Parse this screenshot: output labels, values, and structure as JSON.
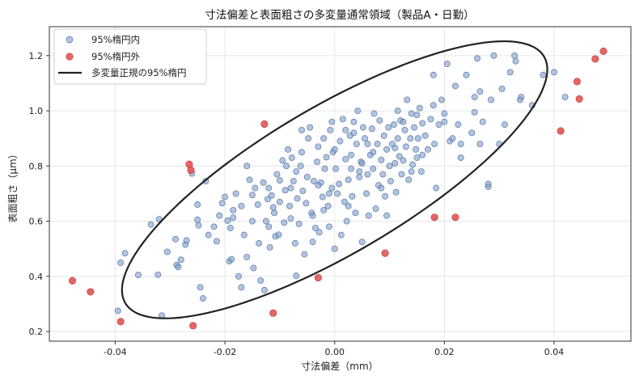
{
  "chart_data": {
    "type": "scatter",
    "title": "寸法偏差と表面粗さの多変量通常領域（製品A・日勤）",
    "xlabel": "寸法偏差（mm）",
    "ylabel": "表面粗さ（μm）",
    "xlim": [
      -0.052,
      0.054
    ],
    "ylim": [
      0.165,
      1.305
    ],
    "xticks": [
      -0.04,
      -0.02,
      0.0,
      0.02,
      0.04
    ],
    "xtick_labels": [
      "-0.04",
      "-0.02",
      "0.00",
      "0.02",
      "0.04"
    ],
    "yticks": [
      0.2,
      0.4,
      0.6,
      0.8,
      1.0,
      1.2
    ],
    "ytick_labels": [
      "0.2",
      "0.4",
      "0.6",
      "0.8",
      "1.0",
      "1.2"
    ],
    "grid": true,
    "legend_position": "top-left",
    "colors": {
      "inside": "#7f9fc9",
      "inside_edge": "#5a78a8",
      "outside": "#e05555",
      "outside_edge": "#c44040",
      "ellipse": "#222222"
    },
    "ellipse": {
      "name": "多変量正規の95%楕円",
      "center": [
        0.0,
        0.75
      ],
      "semi_major": [
        0.0375,
        0.4636
      ],
      "semi_minor": [
        -0.0098,
        0.1929
      ]
    },
    "series": [
      {
        "name": "95%楕円内",
        "points": [
          [
            -0.0395,
            0.275
          ],
          [
            -0.039,
            0.449
          ],
          [
            -0.0382,
            0.484
          ],
          [
            -0.0358,
            0.405
          ],
          [
            -0.0335,
            0.588
          ],
          [
            -0.0322,
            0.406
          ],
          [
            -0.032,
            0.607
          ],
          [
            -0.0315,
            0.258
          ],
          [
            -0.0305,
            0.489
          ],
          [
            -0.029,
            0.535
          ],
          [
            -0.0288,
            0.441
          ],
          [
            -0.0285,
            0.434
          ],
          [
            -0.028,
            0.46
          ],
          [
            -0.0272,
            0.515
          ],
          [
            -0.027,
            0.53
          ],
          [
            -0.026,
            0.773
          ],
          [
            -0.025,
            0.605
          ],
          [
            -0.0248,
            0.585
          ],
          [
            -0.0245,
            0.36
          ],
          [
            -0.024,
            0.32
          ],
          [
            -0.0235,
            0.745
          ],
          [
            -0.022,
            0.58
          ],
          [
            -0.0215,
            0.527
          ],
          [
            -0.021,
            0.62
          ],
          [
            -0.0205,
            0.665
          ],
          [
            -0.02,
            0.688
          ],
          [
            -0.0195,
            0.602
          ],
          [
            -0.0192,
            0.455
          ],
          [
            -0.019,
            0.575
          ],
          [
            -0.0188,
            0.462
          ],
          [
            -0.0185,
            0.613
          ],
          [
            -0.018,
            0.7
          ],
          [
            -0.0175,
            0.4
          ],
          [
            -0.017,
            0.655
          ],
          [
            -0.0165,
            0.55
          ],
          [
            -0.016,
            0.47
          ],
          [
            -0.0155,
            0.75
          ],
          [
            -0.015,
            0.6
          ],
          [
            -0.0148,
            0.43
          ],
          [
            -0.0145,
            0.72
          ],
          [
            -0.014,
            0.66
          ],
          [
            -0.0138,
            0.52
          ],
          [
            -0.0135,
            0.385
          ],
          [
            -0.013,
            0.74
          ],
          [
            -0.0128,
            0.35
          ],
          [
            -0.0125,
            0.6
          ],
          [
            -0.0122,
            0.68
          ],
          [
            -0.012,
            0.58
          ],
          [
            -0.0118,
            0.505
          ],
          [
            -0.0115,
            0.693
          ],
          [
            -0.0112,
            0.65
          ],
          [
            -0.011,
            0.63
          ],
          [
            -0.0108,
            0.545
          ],
          [
            -0.0105,
            0.77
          ],
          [
            -0.0102,
            0.551
          ],
          [
            -0.01,
            0.748
          ],
          [
            -0.0095,
            0.82
          ],
          [
            -0.0092,
            0.595
          ],
          [
            -0.009,
            0.712
          ],
          [
            -0.0088,
            0.8
          ],
          [
            -0.0085,
            0.86
          ],
          [
            -0.0082,
            0.655
          ],
          [
            -0.008,
            0.61
          ],
          [
            -0.0078,
            0.83
          ],
          [
            -0.0075,
            0.745
          ],
          [
            -0.0072,
            0.52
          ],
          [
            -0.007,
            0.402
          ],
          [
            -0.0068,
            0.682
          ],
          [
            -0.0065,
            0.59
          ],
          [
            -0.0062,
            0.8
          ],
          [
            -0.006,
            0.93
          ],
          [
            -0.0058,
            0.71
          ],
          [
            -0.0055,
            0.48
          ],
          [
            -0.0052,
            0.665
          ],
          [
            -0.005,
            0.76
          ],
          [
            -0.0048,
            0.9
          ],
          [
            -0.0045,
            0.94
          ],
          [
            -0.0042,
            0.63
          ],
          [
            -0.004,
            0.525
          ],
          [
            -0.0038,
            0.745
          ],
          [
            -0.0035,
            0.575
          ],
          [
            -0.0032,
            0.815
          ],
          [
            -0.003,
            0.87
          ],
          [
            -0.0028,
            0.56
          ],
          [
            -0.0025,
            0.74
          ],
          [
            -0.0022,
            0.688
          ],
          [
            -0.002,
            0.64
          ],
          [
            -0.0018,
            0.79
          ],
          [
            -0.0015,
            0.832
          ],
          [
            -0.0012,
            0.655
          ],
          [
            -0.001,
            0.58
          ],
          [
            -0.0008,
            0.93
          ],
          [
            -0.0005,
            0.72
          ],
          [
            -0.0003,
            0.85
          ],
          [
            0.0,
            0.5
          ],
          [
            0.0002,
            0.79
          ],
          [
            0.0005,
            0.7
          ],
          [
            0.0008,
            0.735
          ],
          [
            0.001,
            0.89
          ],
          [
            0.0012,
            0.55
          ],
          [
            0.0015,
            0.97
          ],
          [
            0.0018,
            0.67
          ],
          [
            0.002,
            0.825
          ],
          [
            0.0022,
            0.6
          ],
          [
            0.0025,
            0.75
          ],
          [
            0.0028,
            0.91
          ],
          [
            0.003,
            0.79
          ],
          [
            0.0032,
            0.69
          ],
          [
            0.0035,
            0.96
          ],
          [
            0.0038,
            0.63
          ],
          [
            0.004,
            0.88
          ],
          [
            0.0042,
            1.0
          ],
          [
            0.0045,
            0.76
          ],
          [
            0.0048,
            0.815
          ],
          [
            0.005,
            0.525
          ],
          [
            0.0052,
            0.94
          ],
          [
            0.0055,
            0.9
          ],
          [
            0.0058,
            0.7
          ],
          [
            0.006,
            0.77
          ],
          [
            0.0062,
            0.62
          ],
          [
            0.0065,
            0.84
          ],
          [
            0.0068,
            0.935
          ],
          [
            0.007,
            0.79
          ],
          [
            0.0072,
            0.99
          ],
          [
            0.0075,
            0.645
          ],
          [
            0.0078,
            0.88
          ],
          [
            0.008,
            0.73
          ],
          [
            0.0082,
            0.965
          ],
          [
            0.0085,
            0.822
          ],
          [
            0.0088,
            0.77
          ],
          [
            0.009,
            0.91
          ],
          [
            0.0092,
            0.69
          ],
          [
            0.0095,
            0.86
          ],
          [
            0.0098,
            0.94
          ],
          [
            0.01,
            0.8
          ],
          [
            0.0102,
            0.745
          ],
          [
            0.0105,
            0.88
          ],
          [
            0.0108,
            0.95
          ],
          [
            0.011,
            0.81
          ],
          [
            0.0112,
            0.705
          ],
          [
            0.0115,
            0.9
          ],
          [
            0.0118,
            0.835
          ],
          [
            0.012,
            0.965
          ],
          [
            0.0122,
            0.77
          ],
          [
            0.0125,
            0.82
          ],
          [
            0.0128,
            0.93
          ],
          [
            0.013,
            0.87
          ],
          [
            0.0132,
            1.04
          ],
          [
            0.0135,
            0.75
          ],
          [
            0.0138,
            0.9
          ],
          [
            0.014,
            0.99
          ],
          [
            0.0142,
            0.805
          ],
          [
            0.0145,
            0.94
          ],
          [
            0.0148,
            0.86
          ],
          [
            0.015,
            0.985
          ],
          [
            0.0152,
            0.9
          ],
          [
            0.0155,
            1.01
          ],
          [
            0.0158,
            0.78
          ],
          [
            0.016,
            0.955
          ],
          [
            0.0165,
            0.91
          ],
          [
            0.017,
            0.86
          ],
          [
            0.0175,
            0.97
          ],
          [
            0.018,
            1.13
          ],
          [
            0.0182,
            0.88
          ],
          [
            0.0185,
            0.72
          ],
          [
            0.019,
            0.95
          ],
          [
            0.0195,
            1.04
          ],
          [
            0.02,
            0.96
          ],
          [
            0.0205,
            1.17
          ],
          [
            0.021,
            0.89
          ],
          [
            0.0215,
            0.9
          ],
          [
            0.022,
            1.09
          ],
          [
            0.0225,
            0.95
          ],
          [
            0.023,
            0.88
          ],
          [
            0.024,
            1.13
          ],
          [
            0.025,
            0.92
          ],
          [
            0.0255,
            1.05
          ],
          [
            0.026,
            1.19
          ],
          [
            0.0265,
            0.88
          ],
          [
            0.027,
            0.96
          ],
          [
            0.028,
            0.725
          ],
          [
            0.0285,
            1.04
          ],
          [
            0.029,
            1.2
          ],
          [
            0.03,
            0.88
          ],
          [
            0.0305,
            1.08
          ],
          [
            0.031,
            0.95
          ],
          [
            0.032,
            1.14
          ],
          [
            0.033,
            1.18
          ],
          [
            0.034,
            1.05
          ],
          [
            0.036,
            1.02
          ],
          [
            0.038,
            1.13
          ],
          [
            0.04,
            1.14
          ],
          [
            0.042,
            1.05
          ],
          [
            -0.0005,
            0.96
          ],
          [
            0.002,
            0.93
          ],
          [
            0.006,
            0.88
          ],
          [
            -0.008,
            0.72
          ],
          [
            -0.001,
            0.7
          ],
          [
            0.007,
            0.85
          ],
          [
            -0.015,
            0.695
          ],
          [
            0.014,
            0.78
          ],
          [
            0.003,
            0.84
          ],
          [
            -0.004,
            0.62
          ],
          [
            0.011,
            0.865
          ],
          [
            -0.007,
            0.78
          ],
          [
            0.0085,
            0.72
          ],
          [
            -0.002,
            0.9
          ],
          [
            0.016,
            0.84
          ],
          [
            -0.016,
            0.8
          ],
          [
            0.023,
            0.83
          ],
          [
            -0.01,
            0.67
          ],
          [
            0.0025,
            0.655
          ],
          [
            0.018,
            1.02
          ],
          [
            -0.006,
            0.85
          ],
          [
            0.015,
            0.83
          ],
          [
            -0.003,
            0.73
          ],
          [
            0.005,
            0.81
          ],
          [
            0.0095,
            0.62
          ],
          [
            -0.023,
            0.55
          ],
          [
            0.02,
            0.99
          ],
          [
            -0.012,
            0.72
          ],
          [
            0.0035,
            0.92
          ],
          [
            0.0265,
            1.07
          ],
          [
            -0.0185,
            0.64
          ],
          [
            0.0125,
            0.96
          ],
          [
            0.0,
            0.86
          ],
          [
            0.028,
            0.735
          ],
          [
            0.0328,
            1.2
          ],
          [
            -0.025,
            0.66
          ],
          [
            0.0338,
            1.04
          ],
          [
            0.0255,
            0.995
          ],
          [
            -0.017,
            0.36
          ],
          [
            0.0045,
            0.78
          ],
          [
            0.0115,
            1.0
          ]
        ]
      },
      {
        "name": "95%楕円外",
        "points": [
          [
            -0.0478,
            0.384
          ],
          [
            -0.0445,
            0.344
          ],
          [
            -0.039,
            0.236
          ],
          [
            -0.0265,
            0.806
          ],
          [
            -0.0262,
            0.785
          ],
          [
            -0.0258,
            0.221
          ],
          [
            -0.0128,
            0.952
          ],
          [
            -0.0112,
            0.267
          ],
          [
            -0.003,
            0.395
          ],
          [
            0.0092,
            0.484
          ],
          [
            0.0182,
            0.614
          ],
          [
            0.022,
            0.614
          ],
          [
            0.0412,
            0.927
          ],
          [
            0.0442,
            1.106
          ],
          [
            0.0446,
            1.043
          ],
          [
            0.0475,
            1.188
          ],
          [
            0.049,
            1.216
          ]
        ]
      }
    ]
  }
}
